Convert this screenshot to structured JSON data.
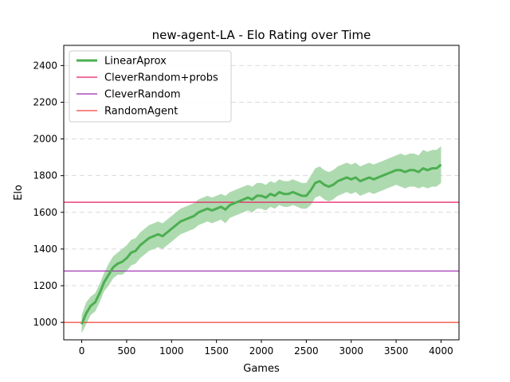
{
  "chart_data": {
    "type": "line",
    "title": "new-agent-LA - Elo Rating over Time",
    "xlabel": "Games",
    "ylabel": "Elo",
    "xlim": [
      -200,
      4200
    ],
    "ylim": [
      905,
      2510
    ],
    "xticks": [
      0,
      500,
      1000,
      1500,
      2000,
      2500,
      3000,
      3500,
      4000
    ],
    "yticks": [
      1000,
      1200,
      1400,
      1600,
      1800,
      2000,
      2200,
      2400
    ],
    "grid": "y-dashed",
    "legend_position": "top-left",
    "series": [
      {
        "name": "LinearAprox",
        "color": "#4caf50",
        "band_color": "#a5d6a7",
        "x": [
          0,
          50,
          100,
          150,
          200,
          250,
          300,
          350,
          400,
          450,
          500,
          550,
          600,
          650,
          700,
          750,
          800,
          850,
          900,
          950,
          1000,
          1050,
          1100,
          1150,
          1200,
          1250,
          1300,
          1350,
          1400,
          1450,
          1500,
          1550,
          1600,
          1650,
          1700,
          1750,
          1800,
          1850,
          1900,
          1950,
          2000,
          2050,
          2100,
          2150,
          2200,
          2250,
          2300,
          2350,
          2400,
          2450,
          2500,
          2550,
          2600,
          2650,
          2700,
          2750,
          2800,
          2850,
          2900,
          2950,
          3000,
          3050,
          3100,
          3150,
          3200,
          3250,
          3300,
          3350,
          3400,
          3450,
          3500,
          3550,
          3600,
          3650,
          3700,
          3750,
          3800,
          3850,
          3900,
          3950,
          4000
        ],
        "values": [
          990,
          1050,
          1090,
          1110,
          1160,
          1220,
          1260,
          1300,
          1320,
          1330,
          1350,
          1380,
          1390,
          1420,
          1440,
          1460,
          1470,
          1480,
          1470,
          1490,
          1510,
          1530,
          1550,
          1560,
          1570,
          1580,
          1600,
          1610,
          1620,
          1610,
          1620,
          1630,
          1615,
          1640,
          1650,
          1660,
          1670,
          1680,
          1670,
          1690,
          1690,
          1680,
          1700,
          1690,
          1710,
          1700,
          1700,
          1710,
          1700,
          1690,
          1690,
          1720,
          1760,
          1770,
          1750,
          1740,
          1750,
          1770,
          1780,
          1790,
          1780,
          1790,
          1770,
          1780,
          1790,
          1780,
          1790,
          1800,
          1810,
          1820,
          1830,
          1830,
          1820,
          1830,
          1830,
          1820,
          1840,
          1830,
          1840,
          1840,
          1860
        ],
        "lower": [
          940,
          990,
          1040,
          1060,
          1110,
          1170,
          1200,
          1240,
          1260,
          1260,
          1280,
          1310,
          1320,
          1350,
          1370,
          1390,
          1400,
          1410,
          1400,
          1420,
          1440,
          1460,
          1480,
          1490,
          1500,
          1510,
          1530,
          1540,
          1550,
          1540,
          1550,
          1560,
          1540,
          1570,
          1580,
          1590,
          1600,
          1610,
          1600,
          1620,
          1620,
          1610,
          1630,
          1620,
          1640,
          1630,
          1630,
          1640,
          1630,
          1620,
          1620,
          1640,
          1680,
          1690,
          1670,
          1660,
          1670,
          1690,
          1700,
          1710,
          1700,
          1710,
          1690,
          1700,
          1710,
          1700,
          1710,
          1720,
          1730,
          1740,
          1750,
          1740,
          1730,
          1740,
          1740,
          1730,
          1740,
          1730,
          1740,
          1740,
          1760
        ],
        "upper": [
          1040,
          1110,
          1140,
          1160,
          1210,
          1270,
          1320,
          1360,
          1380,
          1400,
          1420,
          1450,
          1460,
          1490,
          1510,
          1530,
          1540,
          1550,
          1540,
          1560,
          1580,
          1600,
          1620,
          1630,
          1640,
          1650,
          1670,
          1680,
          1690,
          1680,
          1690,
          1700,
          1690,
          1710,
          1720,
          1730,
          1740,
          1750,
          1740,
          1760,
          1760,
          1750,
          1770,
          1760,
          1780,
          1770,
          1770,
          1780,
          1770,
          1760,
          1760,
          1800,
          1840,
          1850,
          1830,
          1820,
          1830,
          1850,
          1860,
          1870,
          1860,
          1870,
          1850,
          1860,
          1870,
          1860,
          1870,
          1880,
          1890,
          1900,
          1910,
          1920,
          1910,
          1920,
          1920,
          1910,
          1940,
          1930,
          1940,
          1940,
          1960
        ]
      },
      {
        "name": "CleverRandom+probs",
        "color": "#e91e63",
        "hline": 1655
      },
      {
        "name": "CleverRandom",
        "color": "#9c27b0",
        "hline": 1280
      },
      {
        "name": "RandomAgent",
        "color": "#f44336",
        "hline": 1000
      }
    ]
  }
}
